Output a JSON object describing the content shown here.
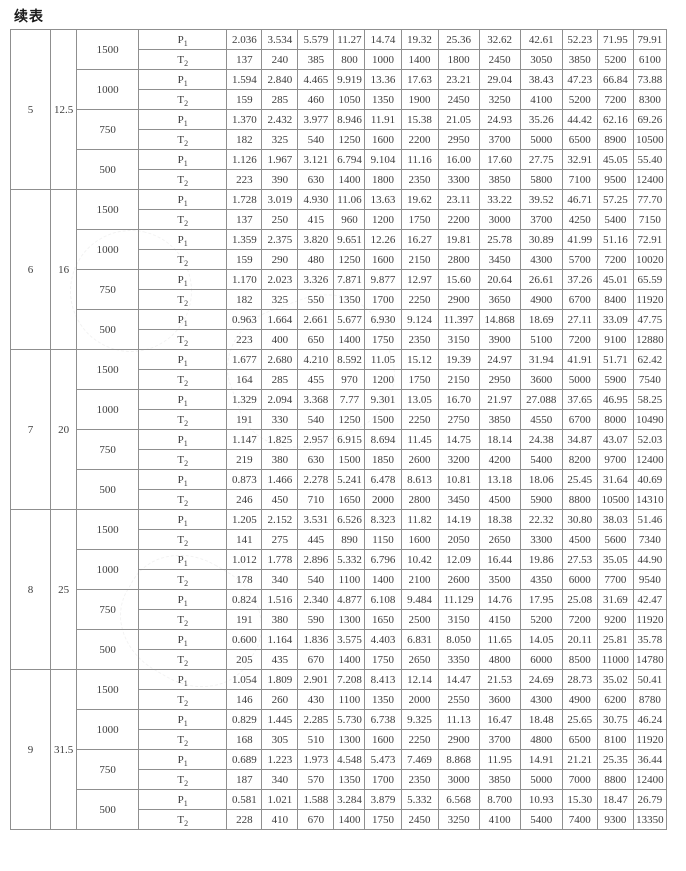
{
  "page_title": "续表",
  "row_labels": {
    "p1": {
      "base": "P",
      "sub": "1"
    },
    "t2": {
      "base": "T",
      "sub": "2"
    }
  },
  "style": {
    "border_color": "#8f8f8f",
    "text_color": "#3d3d3d",
    "background": "#ffffff"
  },
  "table": {
    "groups": [
      {
        "no": "5",
        "ratio": "12.5",
        "speeds": [
          {
            "rpm": "1500",
            "p1": [
              "2.036",
              "3.534",
              "5.579",
              "11.27",
              "14.74",
              "19.32",
              "25.36",
              "32.62",
              "42.61",
              "52.23",
              "71.95",
              "79.91"
            ],
            "t2": [
              "137",
              "240",
              "385",
              "800",
              "1000",
              "1400",
              "1800",
              "2450",
              "3050",
              "3850",
              "5200",
              "6100"
            ]
          },
          {
            "rpm": "1000",
            "p1": [
              "1.594",
              "2.840",
              "4.465",
              "9.919",
              "13.36",
              "17.63",
              "23.21",
              "29.04",
              "38.43",
              "47.23",
              "66.84",
              "73.88"
            ],
            "t2": [
              "159",
              "285",
              "460",
              "1050",
              "1350",
              "1900",
              "2450",
              "3250",
              "4100",
              "5200",
              "7200",
              "8300"
            ]
          },
          {
            "rpm": "750",
            "p1": [
              "1.370",
              "2.432",
              "3.977",
              "8.946",
              "11.91",
              "15.38",
              "21.05",
              "24.93",
              "35.26",
              "44.42",
              "62.16",
              "69.26"
            ],
            "t2": [
              "182",
              "325",
              "540",
              "1250",
              "1600",
              "2200",
              "2950",
              "3700",
              "5000",
              "6500",
              "8900",
              "10500"
            ]
          },
          {
            "rpm": "500",
            "p1": [
              "1.126",
              "1.967",
              "3.121",
              "6.794",
              "9.104",
              "11.16",
              "16.00",
              "17.60",
              "27.75",
              "32.91",
              "45.05",
              "55.40"
            ],
            "t2": [
              "223",
              "390",
              "630",
              "1400",
              "1800",
              "2350",
              "3300",
              "3850",
              "5800",
              "7100",
              "9500",
              "12400"
            ]
          }
        ]
      },
      {
        "no": "6",
        "ratio": "16",
        "speeds": [
          {
            "rpm": "1500",
            "p1": [
              "1.728",
              "3.019",
              "4.930",
              "11.06",
              "13.63",
              "19.62",
              "23.11",
              "33.22",
              "39.52",
              "46.71",
              "57.25",
              "77.70"
            ],
            "t2": [
              "137",
              "250",
              "415",
              "960",
              "1200",
              "1750",
              "2200",
              "3000",
              "3700",
              "4250",
              "5400",
              "7150"
            ]
          },
          {
            "rpm": "1000",
            "p1": [
              "1.359",
              "2.375",
              "3.820",
              "9.651",
              "12.26",
              "16.27",
              "19.81",
              "25.78",
              "30.89",
              "41.99",
              "51.16",
              "72.91"
            ],
            "t2": [
              "159",
              "290",
              "480",
              "1250",
              "1600",
              "2150",
              "2800",
              "3450",
              "4300",
              "5700",
              "7200",
              "10020"
            ]
          },
          {
            "rpm": "750",
            "p1": [
              "1.170",
              "2.023",
              "3.326",
              "7.871",
              "9.877",
              "12.97",
              "15.60",
              "20.64",
              "26.61",
              "37.26",
              "45.01",
              "65.59"
            ],
            "t2": [
              "182",
              "325",
              "550",
              "1350",
              "1700",
              "2250",
              "2900",
              "3650",
              "4900",
              "6700",
              "8400",
              "11920"
            ]
          },
          {
            "rpm": "500",
            "p1": [
              "0.963",
              "1.664",
              "2.661",
              "5.677",
              "6.930",
              "9.124",
              "11.397",
              "14.868",
              "18.69",
              "27.11",
              "33.09",
              "47.75"
            ],
            "t2": [
              "223",
              "400",
              "650",
              "1400",
              "1750",
              "2350",
              "3150",
              "3900",
              "5100",
              "7200",
              "9100",
              "12880"
            ]
          }
        ]
      },
      {
        "no": "7",
        "ratio": "20",
        "speeds": [
          {
            "rpm": "1500",
            "p1": [
              "1.677",
              "2.680",
              "4.210",
              "8.592",
              "11.05",
              "15.12",
              "19.39",
              "24.97",
              "31.94",
              "41.91",
              "51.71",
              "62.42"
            ],
            "t2": [
              "164",
              "285",
              "455",
              "970",
              "1200",
              "1750",
              "2150",
              "2950",
              "3600",
              "5000",
              "5900",
              "7540"
            ]
          },
          {
            "rpm": "1000",
            "p1": [
              "1.329",
              "2.094",
              "3.368",
              "7.77",
              "9.301",
              "13.05",
              "16.70",
              "21.97",
              "27.088",
              "37.65",
              "46.95",
              "58.25"
            ],
            "t2": [
              "191",
              "330",
              "540",
              "1250",
              "1500",
              "2250",
              "2750",
              "3850",
              "4550",
              "6700",
              "8000",
              "10490"
            ]
          },
          {
            "rpm": "750",
            "p1": [
              "1.147",
              "1.825",
              "2.957",
              "6.915",
              "8.694",
              "11.45",
              "14.75",
              "18.14",
              "24.38",
              "34.87",
              "43.07",
              "52.03"
            ],
            "t2": [
              "219",
              "380",
              "630",
              "1500",
              "1850",
              "2600",
              "3200",
              "4200",
              "5400",
              "8200",
              "9700",
              "12400"
            ]
          },
          {
            "rpm": "500",
            "p1": [
              "0.873",
              "1.466",
              "2.278",
              "5.241",
              "6.478",
              "8.613",
              "10.81",
              "13.18",
              "18.06",
              "25.45",
              "31.64",
              "40.69"
            ],
            "t2": [
              "246",
              "450",
              "710",
              "1650",
              "2000",
              "2800",
              "3450",
              "4500",
              "5900",
              "8800",
              "10500",
              "14310"
            ]
          }
        ]
      },
      {
        "no": "8",
        "ratio": "25",
        "speeds": [
          {
            "rpm": "1500",
            "p1": [
              "1.205",
              "2.152",
              "3.531",
              "6.526",
              "8.323",
              "11.82",
              "14.19",
              "18.38",
              "22.32",
              "30.80",
              "38.03",
              "51.46"
            ],
            "t2": [
              "141",
              "275",
              "445",
              "890",
              "1150",
              "1600",
              "2050",
              "2650",
              "3300",
              "4500",
              "5600",
              "7340"
            ]
          },
          {
            "rpm": "1000",
            "p1": [
              "1.012",
              "1.778",
              "2.896",
              "5.332",
              "6.796",
              "10.42",
              "12.09",
              "16.44",
              "19.86",
              "27.53",
              "35.05",
              "44.90"
            ],
            "t2": [
              "178",
              "340",
              "540",
              "1100",
              "1400",
              "2100",
              "2600",
              "3500",
              "4350",
              "6000",
              "7700",
              "9540"
            ]
          },
          {
            "rpm": "750",
            "p1": [
              "0.824",
              "1.516",
              "2.340",
              "4.877",
              "6.108",
              "9.484",
              "11.129",
              "14.76",
              "17.95",
              "25.08",
              "31.69",
              "42.47"
            ],
            "t2": [
              "191",
              "380",
              "590",
              "1300",
              "1650",
              "2500",
              "3150",
              "4150",
              "5200",
              "7200",
              "9200",
              "11920"
            ]
          },
          {
            "rpm": "500",
            "p1": [
              "0.600",
              "1.164",
              "1.836",
              "3.575",
              "4.403",
              "6.831",
              "8.050",
              "11.65",
              "14.05",
              "20.11",
              "25.81",
              "35.78"
            ],
            "t2": [
              "205",
              "435",
              "670",
              "1400",
              "1750",
              "2650",
              "3350",
              "4800",
              "6000",
              "8500",
              "11000",
              "14780"
            ]
          }
        ]
      },
      {
        "no": "9",
        "ratio": "31.5",
        "speeds": [
          {
            "rpm": "1500",
            "p1": [
              "1.054",
              "1.809",
              "2.901",
              "7.208",
              "8.413",
              "12.14",
              "14.47",
              "21.53",
              "24.69",
              "28.73",
              "35.02",
              "50.41"
            ],
            "t2": [
              "146",
              "260",
              "430",
              "1100",
              "1350",
              "2000",
              "2550",
              "3600",
              "4300",
              "4900",
              "6200",
              "8780"
            ]
          },
          {
            "rpm": "1000",
            "p1": [
              "0.829",
              "1.445",
              "2.285",
              "5.730",
              "6.738",
              "9.325",
              "11.13",
              "16.47",
              "18.48",
              "25.65",
              "30.75",
              "46.24"
            ],
            "t2": [
              "168",
              "305",
              "510",
              "1300",
              "1600",
              "2250",
              "2900",
              "3700",
              "4800",
              "6500",
              "8100",
              "11920"
            ]
          },
          {
            "rpm": "750",
            "p1": [
              "0.689",
              "1.223",
              "1.973",
              "4.548",
              "5.473",
              "7.469",
              "8.868",
              "11.95",
              "14.91",
              "21.21",
              "25.35",
              "36.44"
            ],
            "t2": [
              "187",
              "340",
              "570",
              "1350",
              "1700",
              "2350",
              "3000",
              "3850",
              "5000",
              "7000",
              "8800",
              "12400"
            ]
          },
          {
            "rpm": "500",
            "p1": [
              "0.581",
              "1.021",
              "1.588",
              "3.284",
              "3.879",
              "5.332",
              "6.568",
              "8.700",
              "10.93",
              "15.30",
              "18.47",
              "26.79"
            ],
            "t2": [
              "228",
              "410",
              "670",
              "1400",
              "1750",
              "2450",
              "3250",
              "4100",
              "5400",
              "7400",
              "9300",
              "13350"
            ]
          }
        ]
      }
    ]
  }
}
